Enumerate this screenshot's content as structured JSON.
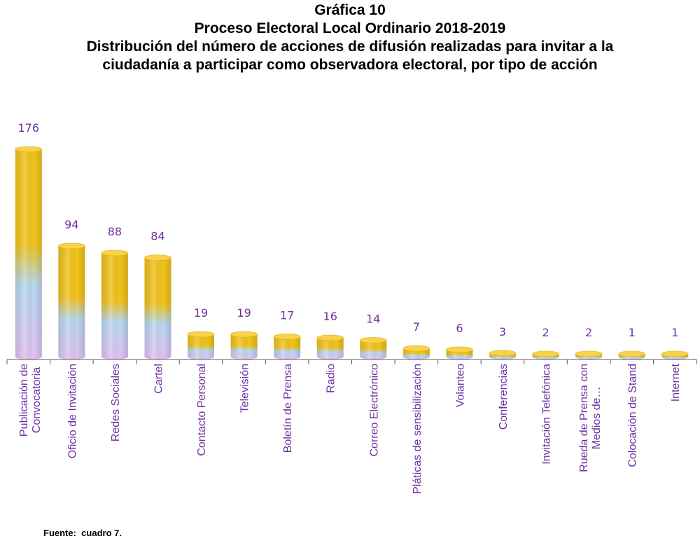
{
  "titles": {
    "line1": "Gráfica 10",
    "line2": "Proceso Electoral Local Ordinario 2018-2019",
    "line3": "Distribución del número de acciones de difusión realizadas para invitar a la",
    "line4": "ciudadanía a participar como observadora electoral, por tipo de acción"
  },
  "source": "Fuente:  cuadro 7.",
  "colors": {
    "bar_top": "#f2c31b",
    "bar_middle": "#b7d9f2",
    "bar_bottom": "#e3c1f2",
    "label_text": "#7030a0",
    "axis": "#595959"
  },
  "chart_data": {
    "type": "bar",
    "title": "",
    "xlabel": "",
    "ylabel": "",
    "ylim": [
      0,
      176
    ],
    "grid": false,
    "legend": "none",
    "categories": [
      [
        "Publicación de",
        "Convocatoria"
      ],
      [
        "Oficio de Invitación"
      ],
      [
        "Redes Sociales"
      ],
      [
        "Cartel"
      ],
      [
        "Contacto Personal"
      ],
      [
        "Televisión"
      ],
      [
        "Boletín de Prensa"
      ],
      [
        "Radio"
      ],
      [
        "Correo Electrónico"
      ],
      [
        "Pláticas de sensibilización"
      ],
      [
        "Volanteo"
      ],
      [
        "Conferencias"
      ],
      [
        "Invitación Telefónica"
      ],
      [
        "Rueda de Prensa con",
        "Medios de…"
      ],
      [
        "Colocación de Stand"
      ],
      [
        "Internet"
      ]
    ],
    "values": [
      176,
      94,
      88,
      84,
      19,
      19,
      17,
      16,
      14,
      7,
      6,
      3,
      2,
      2,
      1,
      1
    ]
  }
}
